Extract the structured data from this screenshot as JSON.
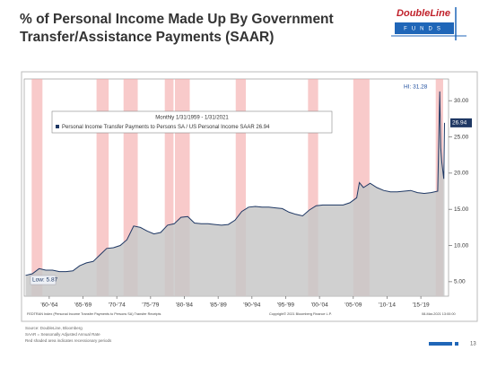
{
  "chart_data": {
    "type": "line",
    "title_lines": [
      "% of Personal Income Made Up By Government",
      "Transfer/Assistance Payments (SAAR)"
    ],
    "annotations": {
      "period": "Monthly 1/31/1959 - 1/31/2021",
      "high": "HI: 31.28",
      "low": "Low: 5.87"
    },
    "x": [
      1959,
      1960,
      1961,
      1962,
      1963,
      1964,
      1965,
      1966,
      1967,
      1968,
      1969,
      1970,
      1971,
      1972,
      1973,
      1974,
      1975,
      1976,
      1977,
      1978,
      1979,
      1980,
      1981,
      1982,
      1983,
      1984,
      1985,
      1986,
      1987,
      1988,
      1989,
      1990,
      1991,
      1992,
      1993,
      1994,
      1995,
      1996,
      1997,
      1998,
      1999,
      2000,
      2001,
      2002,
      2003,
      2004,
      2005,
      2006,
      2007,
      2008,
      2008.4,
      2009,
      2010,
      2011,
      2012,
      2013,
      2014,
      2015,
      2016,
      2017,
      2018,
      2019,
      2020,
      2020.3,
      2020.45,
      2020.6,
      2020.9,
      2021
    ],
    "series": [
      {
        "name": "Personal Income Transfer Payments to Persons SA / US Personal Income SAAR 26.94",
        "color": "#1f3864",
        "fill": "#c8c8c8",
        "values": [
          5.87,
          6.1,
          6.8,
          6.6,
          6.6,
          6.4,
          6.4,
          6.5,
          7.2,
          7.6,
          7.8,
          8.7,
          9.6,
          9.7,
          10.0,
          10.8,
          12.7,
          12.5,
          12.0,
          11.6,
          11.8,
          12.8,
          13.0,
          13.9,
          14.0,
          13.1,
          13.0,
          13.0,
          12.9,
          12.8,
          12.9,
          13.5,
          14.7,
          15.3,
          15.4,
          15.3,
          15.3,
          15.2,
          15.1,
          14.6,
          14.3,
          14.1,
          14.9,
          15.5,
          15.6,
          15.6,
          15.6,
          15.6,
          15.9,
          16.6,
          18.7,
          18.0,
          18.6,
          18.0,
          17.6,
          17.4,
          17.4,
          17.5,
          17.6,
          17.3,
          17.2,
          17.3,
          17.5,
          31.28,
          23.5,
          21.5,
          19.2,
          26.94
        ]
      }
    ],
    "recessions": [
      [
        1960.3,
        1961.1
      ],
      [
        1969.9,
        1970.9
      ],
      [
        1973.9,
        1975.2
      ],
      [
        1980.0,
        1980.5
      ],
      [
        1981.5,
        1982.9
      ],
      [
        1990.5,
        1991.2
      ],
      [
        2001.2,
        2001.9
      ],
      [
        2007.9,
        2009.5
      ],
      [
        2020.1,
        2020.4
      ]
    ],
    "recession_color": "#f4a7a7",
    "xlim": [
      1958.8,
      2021.6
    ],
    "xticks": [
      {
        "value": 1962.5,
        "label": "'60-'64"
      },
      {
        "value": 1967.5,
        "label": "'65-'69"
      },
      {
        "value": 1972.5,
        "label": "'70-'74"
      },
      {
        "value": 1977.5,
        "label": "'75-'79"
      },
      {
        "value": 1982.5,
        "label": "'80-'84"
      },
      {
        "value": 1987.5,
        "label": "'85-'89"
      },
      {
        "value": 1992.5,
        "label": "'90-'94"
      },
      {
        "value": 1997.5,
        "label": "'95-'99"
      },
      {
        "value": 2002.5,
        "label": "'00-'04"
      },
      {
        "value": 2007.5,
        "label": "'05-'09"
      },
      {
        "value": 2012.5,
        "label": "'10-'14"
      },
      {
        "value": 2017.5,
        "label": "'15-'19"
      }
    ],
    "ylim": [
      3,
      33
    ],
    "yticks": [
      {
        "value": 5,
        "label": "5.00"
      },
      {
        "value": 10,
        "label": "10.00"
      },
      {
        "value": 15,
        "label": "15.00"
      },
      {
        "value": 20,
        "label": "20.00"
      },
      {
        "value": 25,
        "label": "25.00"
      },
      {
        "value": 30,
        "label": "30.00"
      }
    ],
    "grid": false,
    "bloomberg_footer": [
      "FEDTRAN Index (Personal Income Transfer Payments to Persons SA) Transfer Receipts",
      "Copyright© 2021 Bloomberg Finance L.P.",
      "08-Mar-2021 13:00:00"
    ]
  },
  "logo": {
    "name": "DoubleLine",
    "sub": "FUNDS"
  },
  "footnotes": [
    "Source: DoubleLine, Bloomberg",
    "SAAR = Seasonally Adjusted Annual Rate",
    "Red shaded area indicates recessionary periods"
  ],
  "page_number": "13"
}
